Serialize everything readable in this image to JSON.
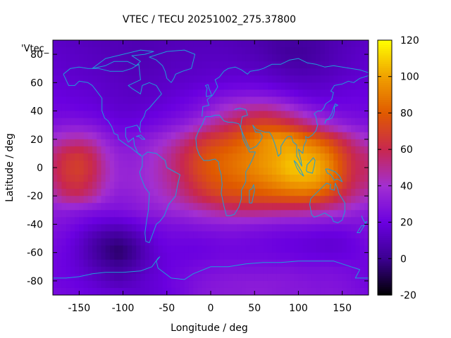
{
  "chart_data": {
    "type": "heatmap",
    "title": "VTEC / TECU 20251002_275.37800",
    "xlabel": "Longitude / deg",
    "ylabel": "Latitude / deg",
    "legend_key": "'Vtec_",
    "xlim": [
      -180,
      180
    ],
    "ylim": [
      -90,
      90
    ],
    "x_ticks": [
      -150,
      -100,
      -50,
      0,
      50,
      100,
      150
    ],
    "y_ticks": [
      -80,
      -60,
      -40,
      -20,
      0,
      20,
      40,
      60,
      80
    ],
    "colorbar": {
      "range": [
        -20,
        120
      ],
      "ticks": [
        -20,
        0,
        20,
        40,
        60,
        80,
        100,
        120
      ],
      "palette": [
        "#000000",
        "#3b0090",
        "#6a00e0",
        "#a22fd2",
        "#c8274f",
        "#e05a00",
        "#f0a000",
        "#ffff00"
      ]
    },
    "coastline_color": "#1f9ed8",
    "lon": [
      -180,
      -165,
      -150,
      -135,
      -120,
      -105,
      -90,
      -75,
      -60,
      -45,
      -30,
      -15,
      0,
      15,
      30,
      45,
      60,
      75,
      90,
      105,
      120,
      135,
      150,
      165,
      180
    ],
    "lat": [
      -87.5,
      -80,
      -70,
      -60,
      -50,
      -40,
      -30,
      -20,
      -10,
      0,
      10,
      20,
      30,
      40,
      50,
      60,
      70,
      80,
      87.5
    ],
    "values": [
      [
        24,
        23,
        21,
        19,
        17,
        16,
        15,
        16,
        18,
        21,
        24,
        28,
        30,
        31,
        31,
        32,
        32,
        31,
        30,
        30,
        29,
        29,
        28,
        26,
        24
      ],
      [
        22,
        21,
        19,
        16,
        12,
        9,
        12,
        16,
        18,
        22,
        24,
        27,
        29,
        30,
        31,
        31,
        31,
        31,
        30,
        29,
        28,
        28,
        27,
        25,
        22
      ],
      [
        22,
        20,
        16,
        10,
        5,
        2,
        6,
        12,
        17,
        20,
        22,
        24,
        25,
        26,
        26,
        26,
        26,
        26,
        26,
        25,
        25,
        25,
        24,
        23,
        22
      ],
      [
        23,
        20,
        14,
        6,
        -2,
        -6,
        -1,
        10,
        17,
        20,
        20,
        20,
        21,
        22,
        22,
        22,
        22,
        21,
        20,
        19,
        18,
        17,
        18,
        20,
        23
      ],
      [
        25,
        22,
        16,
        8,
        2,
        0,
        5,
        13,
        20,
        22,
        22,
        22,
        23,
        24,
        24,
        23,
        22,
        21,
        20,
        19,
        18,
        17,
        18,
        21,
        25
      ],
      [
        28,
        26,
        22,
        18,
        15,
        14,
        17,
        22,
        25,
        27,
        28,
        30,
        31,
        32,
        32,
        31,
        30,
        29,
        28,
        28,
        27,
        26,
        26,
        27,
        28
      ],
      [
        32,
        32,
        30,
        28,
        27,
        27,
        29,
        32,
        34,
        37,
        40,
        44,
        48,
        52,
        55,
        56,
        55,
        54,
        53,
        52,
        50,
        46,
        42,
        36,
        32
      ],
      [
        44,
        55,
        57,
        50,
        38,
        32,
        33,
        36,
        40,
        45,
        52,
        60,
        67,
        72,
        74,
        76,
        78,
        80,
        82,
        83,
        80,
        72,
        60,
        50,
        44
      ],
      [
        53,
        64,
        66,
        58,
        44,
        36,
        36,
        38,
        43,
        50,
        58,
        68,
        76,
        80,
        83,
        86,
        90,
        95,
        100,
        102,
        100,
        90,
        72,
        58,
        53
      ],
      [
        56,
        67,
        70,
        62,
        46,
        36,
        35,
        38,
        44,
        52,
        62,
        73,
        80,
        84,
        88,
        92,
        97,
        102,
        108,
        108,
        105,
        94,
        76,
        60,
        56
      ],
      [
        52,
        62,
        65,
        58,
        42,
        34,
        33,
        36,
        42,
        50,
        60,
        70,
        78,
        82,
        86,
        90,
        96,
        100,
        104,
        102,
        98,
        88,
        72,
        58,
        52
      ],
      [
        40,
        46,
        48,
        44,
        34,
        28,
        28,
        31,
        36,
        42,
        50,
        60,
        68,
        72,
        78,
        86,
        94,
        100,
        98,
        90,
        82,
        72,
        60,
        48,
        40
      ],
      [
        28,
        30,
        30,
        28,
        24,
        20,
        20,
        22,
        25,
        29,
        33,
        40,
        48,
        55,
        62,
        70,
        74,
        72,
        66,
        58,
        48,
        40,
        34,
        30,
        28
      ],
      [
        22,
        22,
        21,
        20,
        18,
        16,
        16,
        17,
        19,
        21,
        24,
        28,
        34,
        42,
        48,
        52,
        54,
        50,
        44,
        36,
        30,
        26,
        24,
        23,
        22
      ],
      [
        20,
        19,
        18,
        17,
        15,
        14,
        13,
        14,
        15,
        17,
        19,
        22,
        25,
        28,
        30,
        31,
        30,
        28,
        24,
        20,
        18,
        18,
        19,
        20,
        20
      ],
      [
        18,
        17,
        16,
        15,
        14,
        13,
        12,
        12,
        13,
        14,
        15,
        16,
        17,
        18,
        19,
        19,
        18,
        16,
        14,
        13,
        13,
        14,
        16,
        17,
        18
      ],
      [
        16,
        15,
        14,
        13,
        12,
        11,
        10,
        10,
        11,
        12,
        13,
        13,
        14,
        14,
        14,
        13,
        12,
        10,
        8,
        7,
        8,
        10,
        12,
        14,
        16
      ],
      [
        15,
        14,
        13,
        12,
        11,
        10,
        9,
        9,
        10,
        11,
        11,
        12,
        12,
        12,
        11,
        10,
        8,
        5,
        3,
        3,
        5,
        8,
        11,
        13,
        15
      ],
      [
        14,
        13,
        12,
        11,
        10,
        10,
        9,
        9,
        10,
        10,
        11,
        11,
        11,
        11,
        10,
        9,
        7,
        5,
        4,
        4,
        5,
        8,
        10,
        12,
        14
      ]
    ]
  }
}
